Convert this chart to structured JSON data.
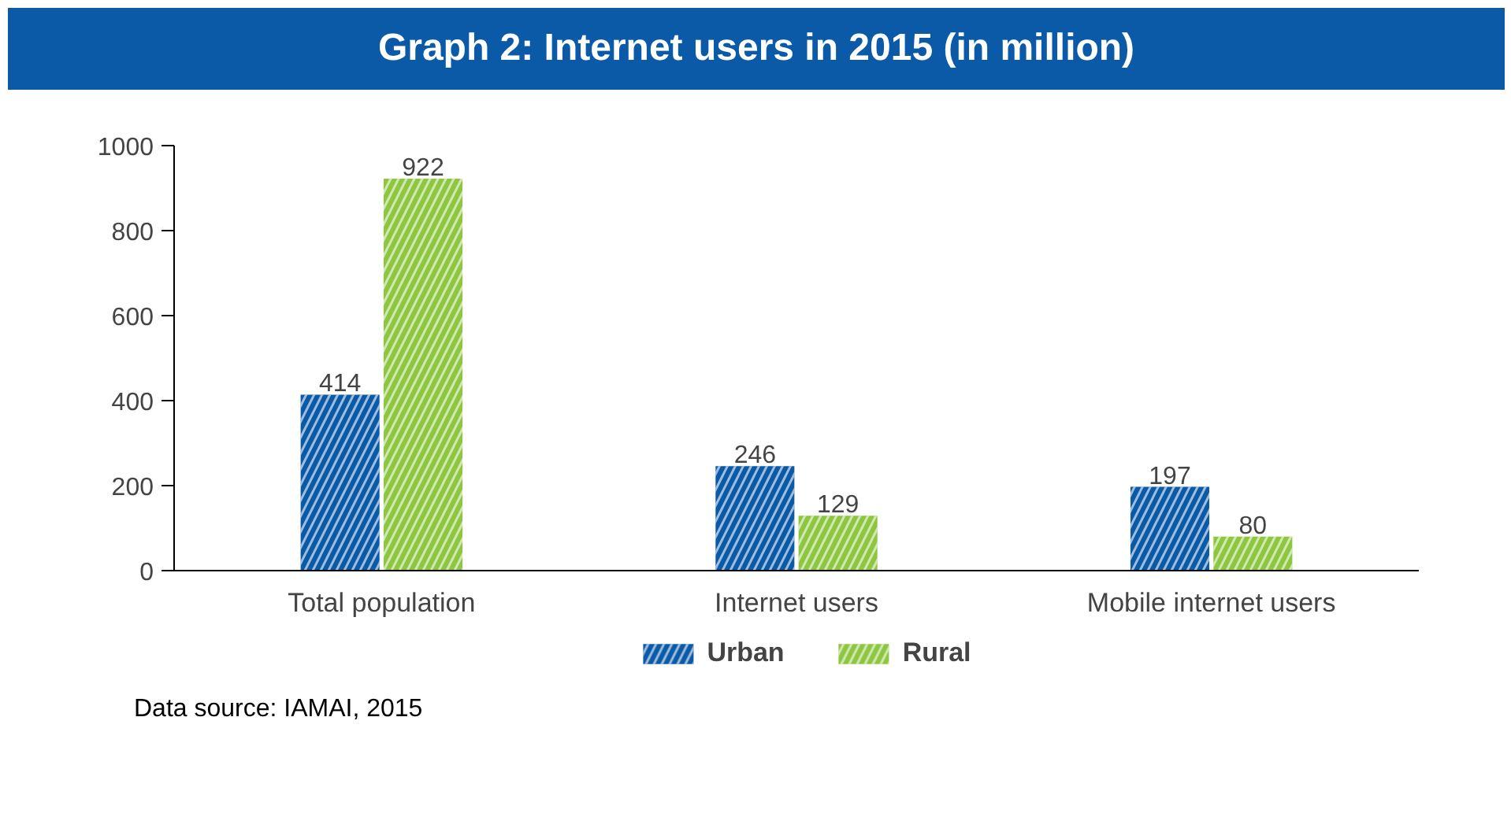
{
  "chart_data": {
    "type": "bar",
    "title": "Graph 2: Internet users in 2015 (in million)",
    "categories": [
      "Total population",
      "Internet users",
      "Mobile internet users"
    ],
    "series": [
      {
        "name": "Urban",
        "color": "#0b5aa8",
        "values": [
          414,
          246,
          197
        ]
      },
      {
        "name": "Rural",
        "color": "#8dc63f",
        "values": [
          922,
          129,
          80
        ]
      }
    ],
    "ylim": [
      0,
      1000
    ],
    "yticks": [
      0,
      200,
      400,
      600,
      800,
      1000
    ],
    "grid": false,
    "legend": "bottom",
    "data_labels": true,
    "annotations": [
      "Data source: IAMAI, 2015"
    ]
  }
}
